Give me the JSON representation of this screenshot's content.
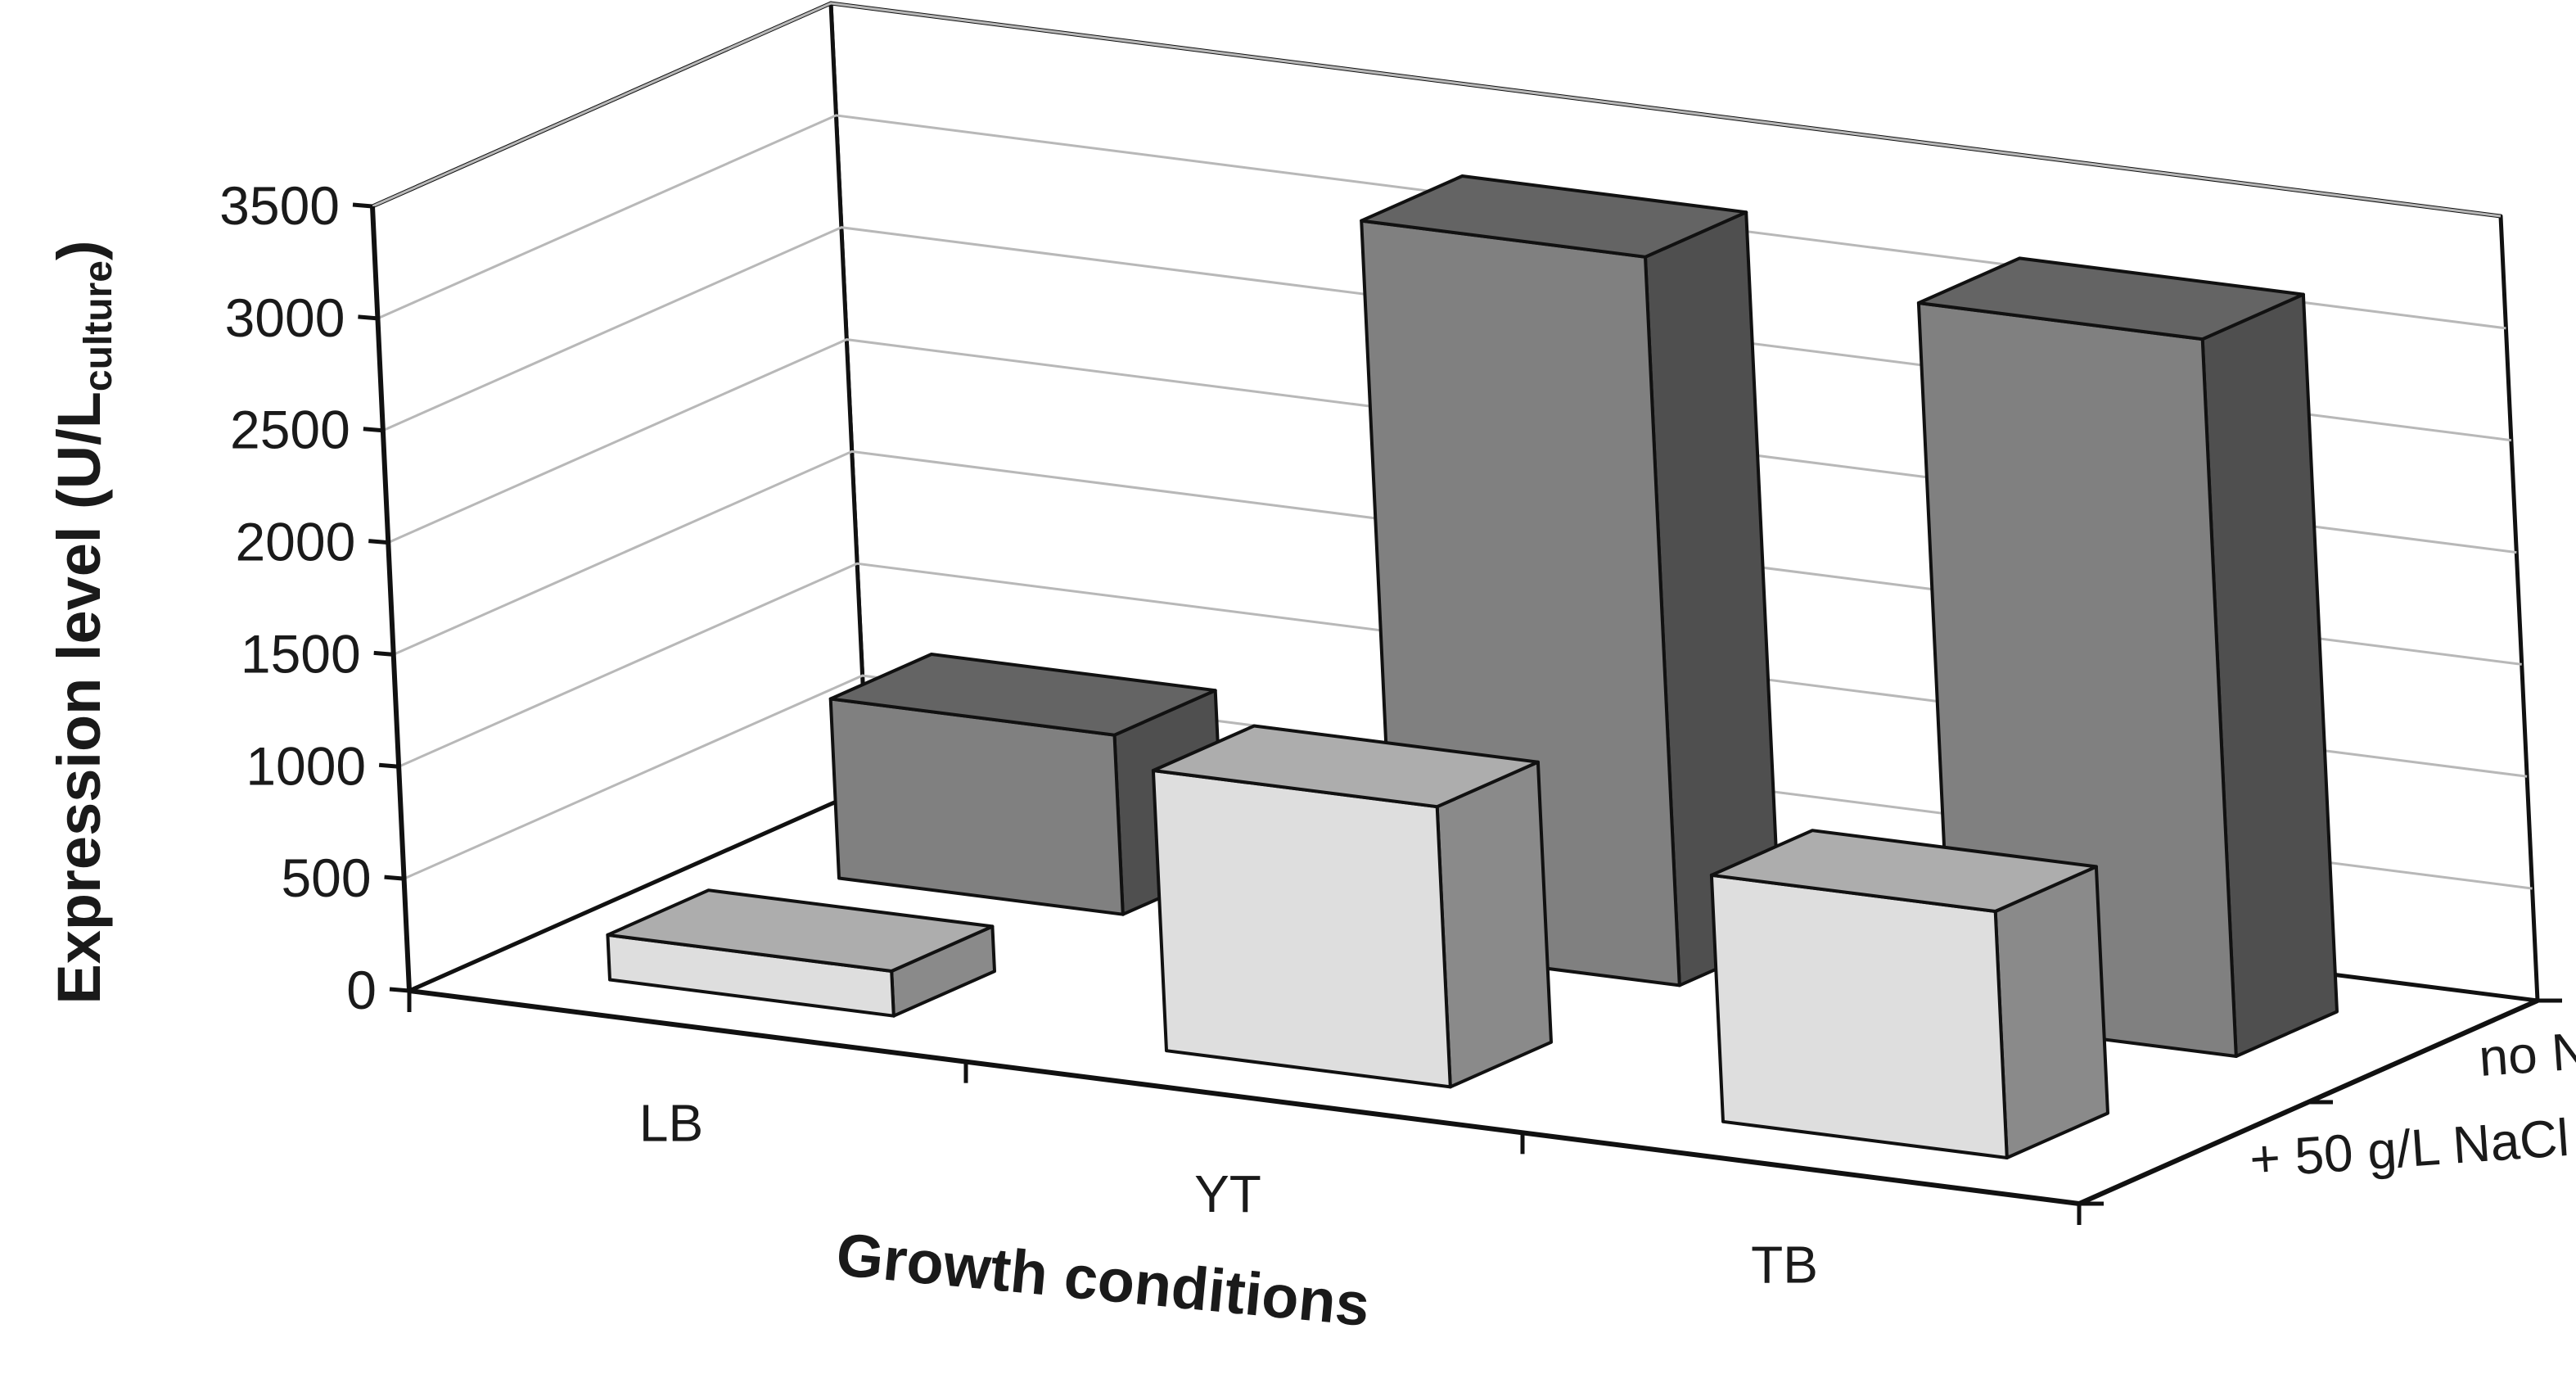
{
  "chart_data": {
    "type": "bar",
    "style": "3d-clustered-depth",
    "title": "",
    "ylabel": "Expression level (U/L",
    "ylabel_subscript": "culture",
    "ylabel_close": ")",
    "xlabel": "Growth conditions",
    "categories": [
      "LB",
      "YT",
      "TB"
    ],
    "series": [
      {
        "name": "no NaCl",
        "values": [
          800,
          3250,
          3200
        ],
        "color": "#808080"
      },
      {
        "name": "+ 50 g/L NaCl",
        "values": [
          200,
          1250,
          1100
        ],
        "color": "#dedede"
      }
    ],
    "ylim": [
      0,
      3500
    ],
    "yticks": [
      "0",
      "500",
      "1000",
      "1500",
      "2000",
      "2500",
      "3000",
      "3500"
    ],
    "grid": true
  }
}
